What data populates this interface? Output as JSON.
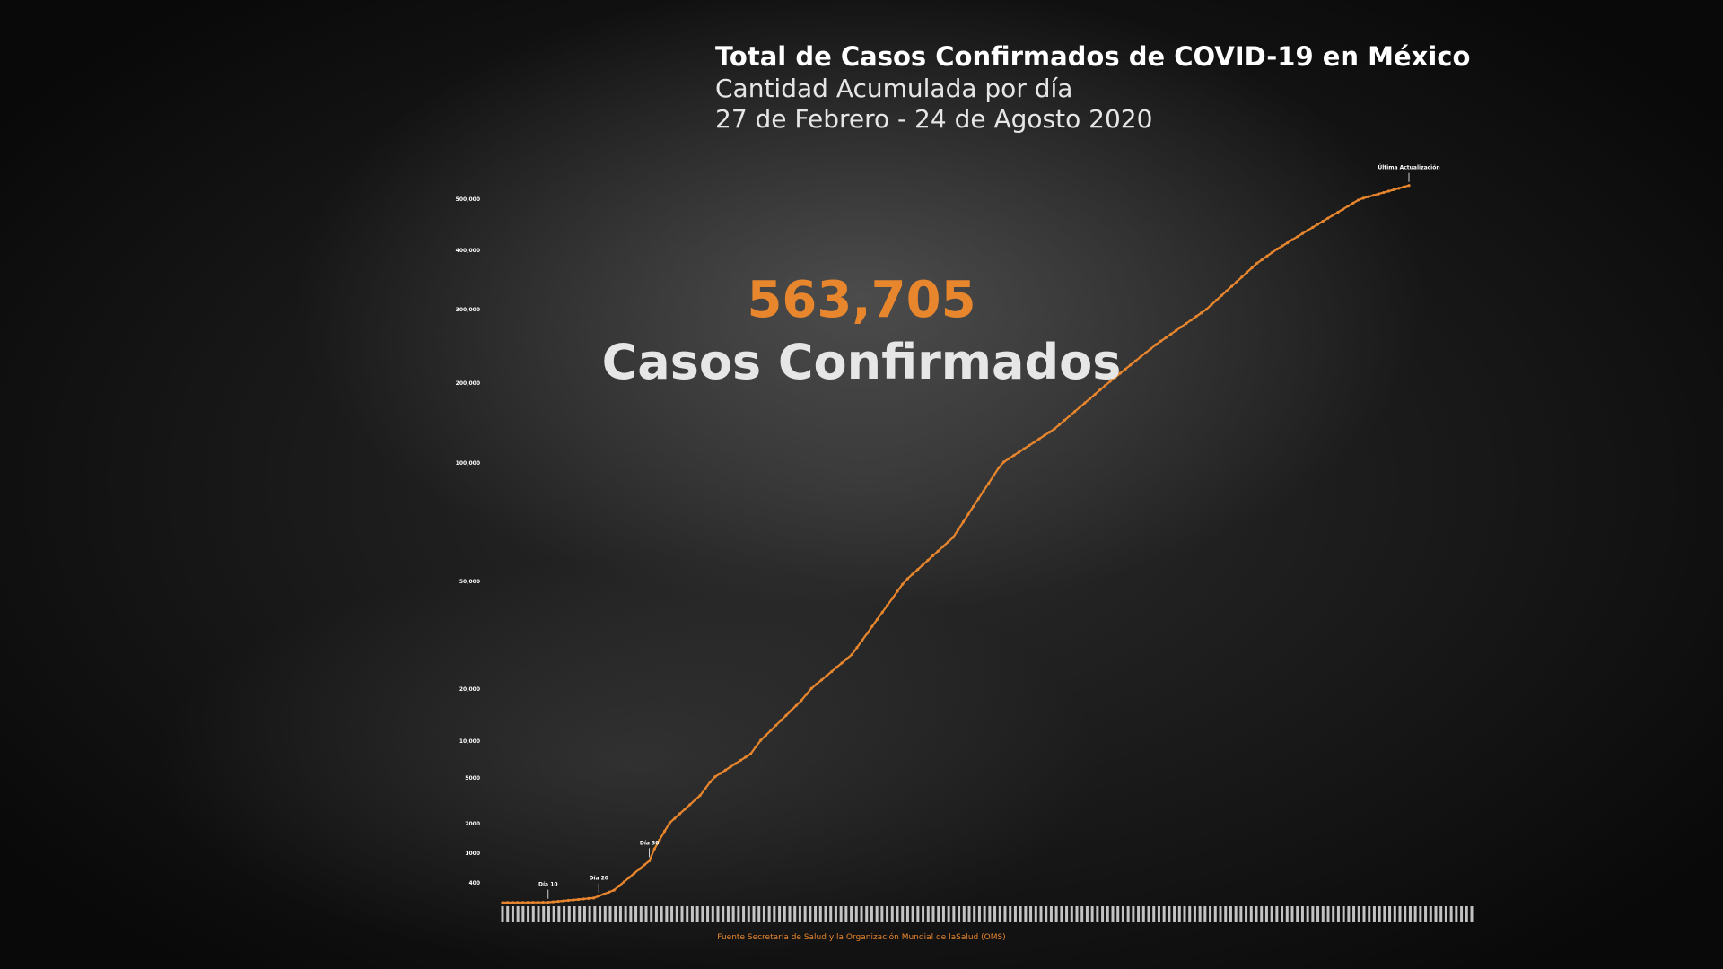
{
  "header": {
    "title": "Total de Casos Confirmados de COVID-19 en México",
    "subtitle_1": "Cantidad Acumulada por día",
    "subtitle_2": "27 de Febrero - 24 de Agosto 2020"
  },
  "highlight": {
    "value": "563,705",
    "label": "Casos Confirmados"
  },
  "source": "Fuente Secretaría de Salud y la Organización Mundial de laSalud (OMS)",
  "colors": {
    "accent": "#e8862e",
    "text": "#ffffff"
  },
  "chart_data": {
    "type": "line",
    "title": "Total de Casos Confirmados de COVID-19 en México",
    "xlabel": "",
    "ylabel": "",
    "x_range": [
      "2020-02-27",
      "2020-08-24"
    ],
    "y_ticks": [
      {
        "label": "500,000",
        "value": 500000
      },
      {
        "label": "400,000",
        "value": 400000
      },
      {
        "label": "300,000",
        "value": 300000
      },
      {
        "label": "200,000",
        "value": 200000
      },
      {
        "label": "100,000",
        "value": 100000
      },
      {
        "label": "50,000",
        "value": 50000
      },
      {
        "label": "20,000",
        "value": 20000
      },
      {
        "label": "10,000",
        "value": 10000
      },
      {
        "label": "5000",
        "value": 5000
      },
      {
        "label": "2000",
        "value": 2000
      },
      {
        "label": "1000",
        "value": 1000
      },
      {
        "label": "400",
        "value": 400
      }
    ],
    "annotations": [
      {
        "label": "Día 10",
        "day": 10
      },
      {
        "label": "Día 20",
        "day": 20
      },
      {
        "label": "Día 30",
        "day": 30
      },
      {
        "label": "Última Actualización",
        "day": 180
      }
    ],
    "series": [
      {
        "days": [
          1,
          10,
          19,
          23,
          30,
          40,
          50,
          60,
          70,
          80,
          90,
          100,
          110,
          120,
          130,
          140,
          150,
          160,
          170,
          180
        ],
        "values": [
          1,
          7,
          93,
          251,
          848,
          3844,
          8261,
          17799,
          29616,
          49219,
          68620,
          101238,
          142690,
          196847,
          252165,
          300254,
          378285,
          439046,
          498380,
          563705
        ]
      }
    ],
    "grid": false,
    "legend": "none"
  }
}
